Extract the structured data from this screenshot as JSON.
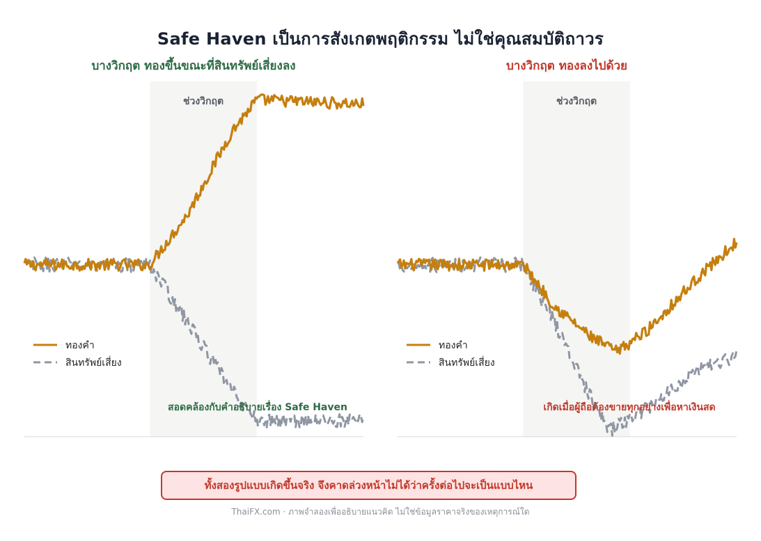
{
  "title": "Safe Haven เป็นการสังเกตพฤติกรรม ไม่ใช่คุณสมบัติถาวร",
  "colors": {
    "gold": "#c57f0e",
    "risk": "#8f96a3",
    "shade": "#f5f5f3",
    "green": "#2e6b46",
    "red": "#c0392b",
    "title": "#1a2233"
  },
  "chart_data": [
    {
      "type": "line",
      "subtitle": "บางวิกฤต ทองขึ้นขณะที่สินทรัพย์เสี่ยงลง",
      "shade_label": "ช่วงวิกฤต",
      "crisis_window": [
        100,
        185
      ],
      "xlim": [
        0,
        270
      ],
      "ylim": [
        -75,
        80
      ],
      "grid": false,
      "legend_position": "lower-left",
      "series": [
        {
          "name": "ทองคำ",
          "style": "solid",
          "keypoints": [
            [
              0,
              0
            ],
            [
              100,
              0
            ],
            [
              130,
              22
            ],
            [
              165,
              58
            ],
            [
              185,
              72
            ],
            [
              270,
              70
            ]
          ]
        },
        {
          "name": "สินทรัพย์เสี่ยง",
          "style": "dashed",
          "keypoints": [
            [
              0,
              0
            ],
            [
              100,
              0
            ],
            [
              130,
              -25
            ],
            [
              165,
              -55
            ],
            [
              185,
              -68
            ],
            [
              270,
              -68
            ]
          ]
        }
      ],
      "annotation": "สอดคล้องกับคำอธิบายเรื่อง Safe Haven"
    },
    {
      "type": "line",
      "subtitle": "บางวิกฤต ทองลงไปด้วย",
      "shade_label": "ช่วงวิกฤต",
      "crisis_window": [
        100,
        185
      ],
      "xlim": [
        0,
        270
      ],
      "ylim": [
        -75,
        80
      ],
      "grid": false,
      "legend_position": "lower-left",
      "series": [
        {
          "name": "ทองคำ",
          "style": "solid",
          "keypoints": [
            [
              0,
              0
            ],
            [
              100,
              0
            ],
            [
              125,
              -18
            ],
            [
              155,
              -32
            ],
            [
              175,
              -38
            ],
            [
              200,
              -28
            ],
            [
              240,
              -5
            ],
            [
              270,
              10
            ]
          ]
        },
        {
          "name": "สินทรัพย์เสี่ยง",
          "style": "dashed",
          "keypoints": [
            [
              0,
              0
            ],
            [
              100,
              0
            ],
            [
              125,
              -25
            ],
            [
              160,
              -65
            ],
            [
              170,
              -72
            ],
            [
              200,
              -62
            ],
            [
              240,
              -45
            ],
            [
              270,
              -40
            ]
          ]
        }
      ],
      "annotation": "เกิดเมื่อผู้ถือต้องขายทุกอย่างเพื่อหาเงินสด"
    }
  ],
  "callout": "ทั้งสองรูปแบบเกิดขึ้นจริง  จึงคาดล่วงหน้าไม่ได้ว่าครั้งต่อไปจะเป็นแบบไหน",
  "footer": "ThaiFX.com  ·  ภาพจำลองเพื่ออธิบายแนวคิด ไม่ใช่ข้อมูลราคาจริงของเหตุการณ์ใด"
}
